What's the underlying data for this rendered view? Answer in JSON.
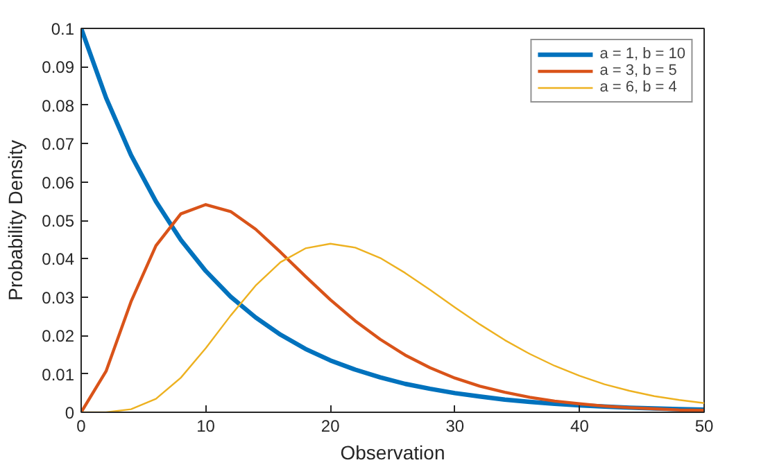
{
  "chart_data": {
    "type": "line",
    "xlabel": "Observation",
    "ylabel": "Probability Density",
    "x": [
      0,
      2,
      4,
      6,
      8,
      10,
      12,
      14,
      16,
      18,
      20,
      22,
      24,
      26,
      28,
      30,
      32,
      34,
      36,
      38,
      40,
      42,
      44,
      46,
      48,
      50
    ],
    "series": [
      {
        "name": "a = 1, b = 10",
        "color": "#0072bd",
        "values": [
          0.1,
          0.0819,
          0.067,
          0.0549,
          0.0449,
          0.0368,
          0.0301,
          0.0247,
          0.0202,
          0.0165,
          0.0135,
          0.0111,
          0.0091,
          0.0074,
          0.0061,
          0.005,
          0.0041,
          0.0033,
          0.0027,
          0.0022,
          0.0018,
          0.0015,
          0.0012,
          0.001,
          0.0008,
          0.0007
        ]
      },
      {
        "name": "a = 3, b = 5",
        "color": "#d95319",
        "values": [
          0,
          0.0107,
          0.0288,
          0.0434,
          0.0517,
          0.0541,
          0.0523,
          0.0477,
          0.0417,
          0.0354,
          0.0293,
          0.0238,
          0.019,
          0.0149,
          0.0116,
          0.0089,
          0.0068,
          0.0052,
          0.0039,
          0.0029,
          0.0022,
          0.0016,
          0.0012,
          0.0009,
          0.0006,
          0.0005
        ]
      },
      {
        "name": "a = 6, b = 4",
        "color": "#edb120",
        "values": [
          0,
          0.0,
          0.0008,
          0.0035,
          0.009,
          0.0167,
          0.0252,
          0.033,
          0.0391,
          0.0427,
          0.0439,
          0.0429,
          0.0402,
          0.0363,
          0.0319,
          0.0273,
          0.0229,
          0.0188,
          0.0152,
          0.0121,
          0.0095,
          0.0073,
          0.0056,
          0.0042,
          0.0032,
          0.0024
        ]
      }
    ],
    "xlim": [
      0,
      50
    ],
    "xticks": [
      0,
      10,
      20,
      30,
      40,
      50
    ],
    "ylim": [
      0,
      0.1
    ],
    "yticks": [
      0,
      0.01,
      0.02,
      0.03,
      0.04,
      0.05,
      0.06,
      0.07,
      0.08,
      0.09,
      0.1
    ],
    "grid": false,
    "legend": "top right",
    "marker": "none",
    "line_style": "solid"
  }
}
